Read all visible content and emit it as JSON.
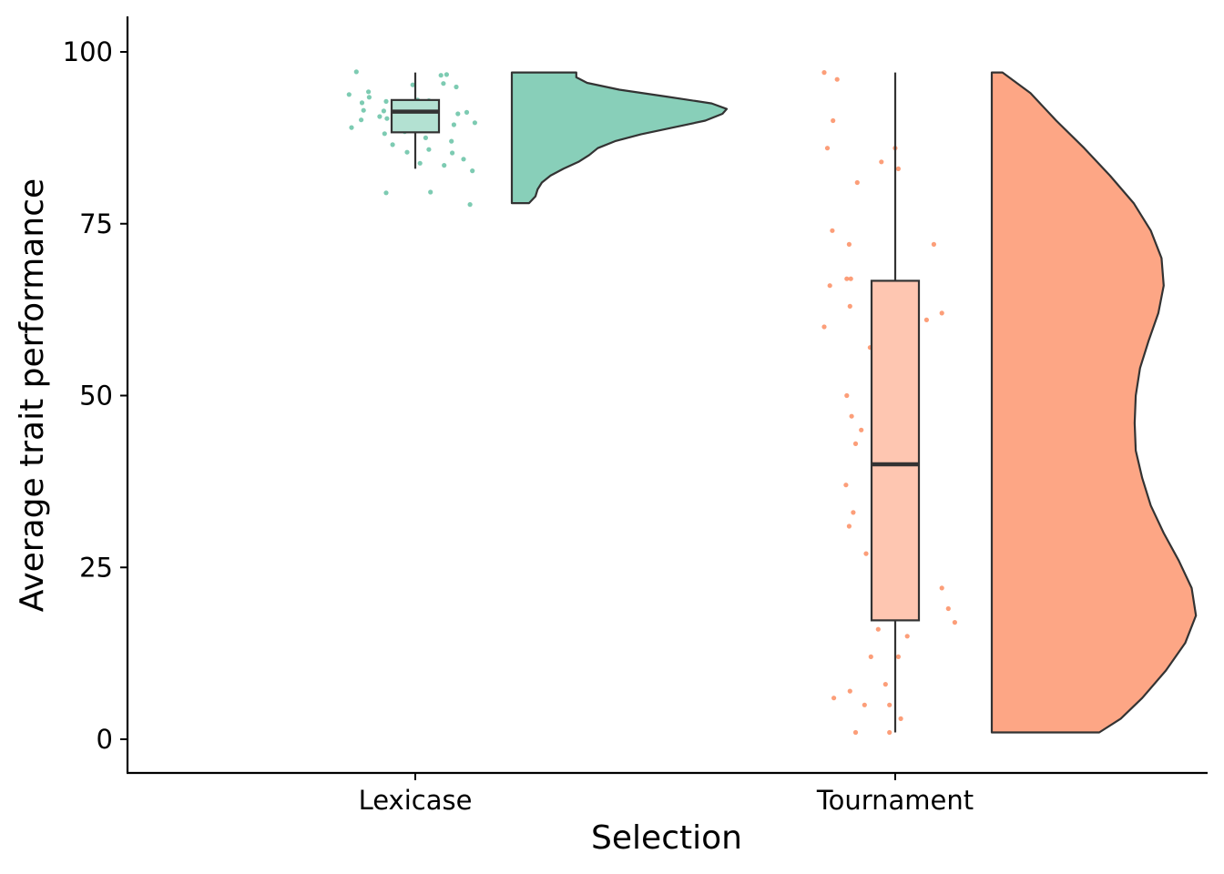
{
  "chart_data": {
    "type": "raincloud",
    "xlabel": "Selection",
    "ylabel": "Average trait performance",
    "ylim": [
      -5,
      105
    ],
    "yticks": [
      0,
      25,
      50,
      75,
      100
    ],
    "categories": [
      "Lexicase",
      "Tournament"
    ],
    "grid": false,
    "legend": "none",
    "series": [
      {
        "category": "Lexicase",
        "color": "#66C2A5",
        "box": {
          "min": 83,
          "q1": 88.3,
          "median": 91.3,
          "q3": 93,
          "max": 97
        },
        "density_profile": [
          [
            78,
            0.08
          ],
          [
            79,
            0.11
          ],
          [
            80,
            0.12
          ],
          [
            81,
            0.14
          ],
          [
            82,
            0.18
          ],
          [
            83,
            0.24
          ],
          [
            84,
            0.31
          ],
          [
            85,
            0.36
          ],
          [
            86,
            0.4
          ],
          [
            87,
            0.48
          ],
          [
            88,
            0.6
          ],
          [
            89,
            0.75
          ],
          [
            90,
            0.9
          ],
          [
            91,
            0.98
          ],
          [
            91.7,
            1.0
          ],
          [
            92.5,
            0.93
          ],
          [
            93.5,
            0.72
          ],
          [
            94.5,
            0.5
          ],
          [
            95.5,
            0.35
          ],
          [
            96.3,
            0.3
          ],
          [
            97,
            0.3
          ]
        ],
        "points": [
          [
            97.1,
            0.15
          ],
          [
            96.6,
            1.2
          ],
          [
            96.7,
            1.27
          ],
          [
            95.4,
            1.23
          ],
          [
            95.2,
            0.85
          ],
          [
            94.9,
            1.39
          ],
          [
            94.2,
            0.3
          ],
          [
            93.8,
            0.06
          ],
          [
            93.4,
            0.31
          ],
          [
            93.0,
            0.91
          ],
          [
            92.9,
            1.05
          ],
          [
            92.8,
            0.52
          ],
          [
            92.7,
            0.83
          ],
          [
            92.6,
            0.22
          ],
          [
            92.4,
            0.76
          ],
          [
            92.2,
            0.93
          ],
          [
            91.7,
            0.64
          ],
          [
            91.5,
            0.24
          ],
          [
            91.4,
            0.49
          ],
          [
            91.2,
            1.52
          ],
          [
            91.0,
            1.41
          ],
          [
            90.6,
            0.44
          ],
          [
            90.3,
            0.53
          ],
          [
            90.1,
            0.21
          ],
          [
            89.7,
            1.62
          ],
          [
            89.4,
            1.36
          ],
          [
            89.3,
            1.14
          ],
          [
            89.0,
            0.09
          ],
          [
            88.4,
            0.75
          ],
          [
            88.1,
            0.5
          ],
          [
            87.5,
            1.01
          ],
          [
            87.0,
            1.33
          ],
          [
            86.5,
            0.6
          ],
          [
            85.8,
            1.05
          ],
          [
            85.4,
            0.78
          ],
          [
            85.3,
            1.34
          ],
          [
            84.4,
            1.48
          ],
          [
            83.8,
            0.94
          ],
          [
            83.5,
            1.24
          ],
          [
            82.7,
            1.59
          ],
          [
            79.6,
            1.07
          ],
          [
            79.5,
            0.52
          ],
          [
            77.8,
            1.56
          ]
        ]
      },
      {
        "category": "Tournament",
        "color": "#FC8D62",
        "box": {
          "min": 1,
          "q1": 17.3,
          "median": 40,
          "q3": 66.7,
          "max": 97
        },
        "density_profile": [
          [
            1,
            0.5
          ],
          [
            3,
            0.6
          ],
          [
            6,
            0.7
          ],
          [
            10,
            0.81
          ],
          [
            14,
            0.9
          ],
          [
            18,
            0.95
          ],
          [
            22,
            0.93
          ],
          [
            26,
            0.87
          ],
          [
            30,
            0.8
          ],
          [
            34,
            0.74
          ],
          [
            38,
            0.7
          ],
          [
            42,
            0.67
          ],
          [
            46,
            0.665
          ],
          [
            50,
            0.67
          ],
          [
            54,
            0.69
          ],
          [
            58,
            0.73
          ],
          [
            62,
            0.775
          ],
          [
            66,
            0.8
          ],
          [
            70,
            0.79
          ],
          [
            74,
            0.74
          ],
          [
            78,
            0.66
          ],
          [
            82,
            0.55
          ],
          [
            86,
            0.43
          ],
          [
            90,
            0.3
          ],
          [
            94,
            0.18
          ],
          [
            97,
            0.05
          ]
        ],
        "points": [
          [
            97,
            0.0
          ],
          [
            96,
            0.16
          ],
          [
            90,
            0.11
          ],
          [
            86,
            0.88
          ],
          [
            86,
            0.04
          ],
          [
            84,
            0.71
          ],
          [
            83,
            0.92
          ],
          [
            81,
            0.41
          ],
          [
            74,
            0.1
          ],
          [
            72,
            1.36
          ],
          [
            72,
            0.31
          ],
          [
            67,
            0.28
          ],
          [
            67,
            0.33
          ],
          [
            66,
            0.07
          ],
          [
            66,
            1.02
          ],
          [
            63,
            0.74
          ],
          [
            63,
            0.32
          ],
          [
            62,
            1.46
          ],
          [
            61,
            1.27
          ],
          [
            60,
            0.0
          ],
          [
            57,
            0.57
          ],
          [
            50,
            0.28
          ],
          [
            47,
            0.34
          ],
          [
            45,
            0.46
          ],
          [
            43,
            0.39
          ],
          [
            37,
            0.27
          ],
          [
            36,
            0.77
          ],
          [
            35,
            0.74
          ],
          [
            33,
            0.36
          ],
          [
            31,
            0.31
          ],
          [
            29,
            0.66
          ],
          [
            27,
            0.89
          ],
          [
            27,
            0.52
          ],
          [
            24,
            0.89
          ],
          [
            22,
            1.46
          ],
          [
            19,
            1.54
          ],
          [
            18,
            1.0
          ],
          [
            17,
            1.62
          ],
          [
            16,
            0.67
          ],
          [
            15,
            1.03
          ],
          [
            12,
            0.92
          ],
          [
            12,
            0.58
          ],
          [
            8,
            0.76
          ],
          [
            7,
            0.32
          ],
          [
            6,
            0.12
          ],
          [
            5,
            0.5
          ],
          [
            5,
            0.81
          ],
          [
            3,
            0.95
          ],
          [
            1,
            0.81
          ],
          [
            1,
            0.39
          ]
        ]
      }
    ]
  }
}
